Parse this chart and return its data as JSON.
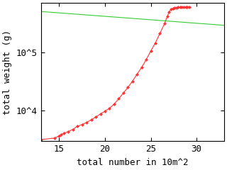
{
  "title": "",
  "xlabel": "total number in 10m^2",
  "ylabel": "total weight (g)",
  "xlim": [
    13,
    33
  ],
  "ylim_log": [
    3000,
    700000
  ],
  "xticks": [
    15,
    20,
    25,
    30
  ],
  "ytick_labels": [
    "10^4",
    "10^5"
  ],
  "ytick_vals": [
    10000,
    100000
  ],
  "red_x": [
    13.0,
    14.5,
    15.0,
    15.2,
    15.5,
    16.0,
    16.5,
    17.0,
    17.5,
    18.0,
    18.5,
    19.0,
    19.5,
    20.0,
    20.5,
    21.0,
    21.5,
    22.0,
    22.5,
    23.0,
    23.5,
    24.0,
    24.5,
    25.0,
    25.5,
    26.0,
    26.5,
    26.8,
    27.0,
    27.2,
    27.4,
    27.6,
    27.8,
    28.0,
    28.2,
    28.4,
    28.6,
    28.8,
    29.0,
    29.2
  ],
  "red_y": [
    3200,
    3400,
    3700,
    3900,
    4100,
    4400,
    4800,
    5400,
    5800,
    6300,
    7000,
    7800,
    8800,
    9800,
    11000,
    13000,
    16000,
    20000,
    25000,
    32000,
    42000,
    55000,
    75000,
    105000,
    145000,
    210000,
    310000,
    410000,
    490000,
    540000,
    570000,
    580000,
    585000,
    588000,
    590000,
    592000,
    594000,
    596000,
    598000,
    600000
  ],
  "green_x": [
    13.0,
    33.0
  ],
  "green_y": [
    500000,
    290000
  ],
  "red_color": "#ff3333",
  "green_color": "#33cc33",
  "bg_color": "#ffffff",
  "font_family": "monospace",
  "marker": "D",
  "markersize": 2.5,
  "linewidth": 0.8,
  "tick_labelsize": 9
}
